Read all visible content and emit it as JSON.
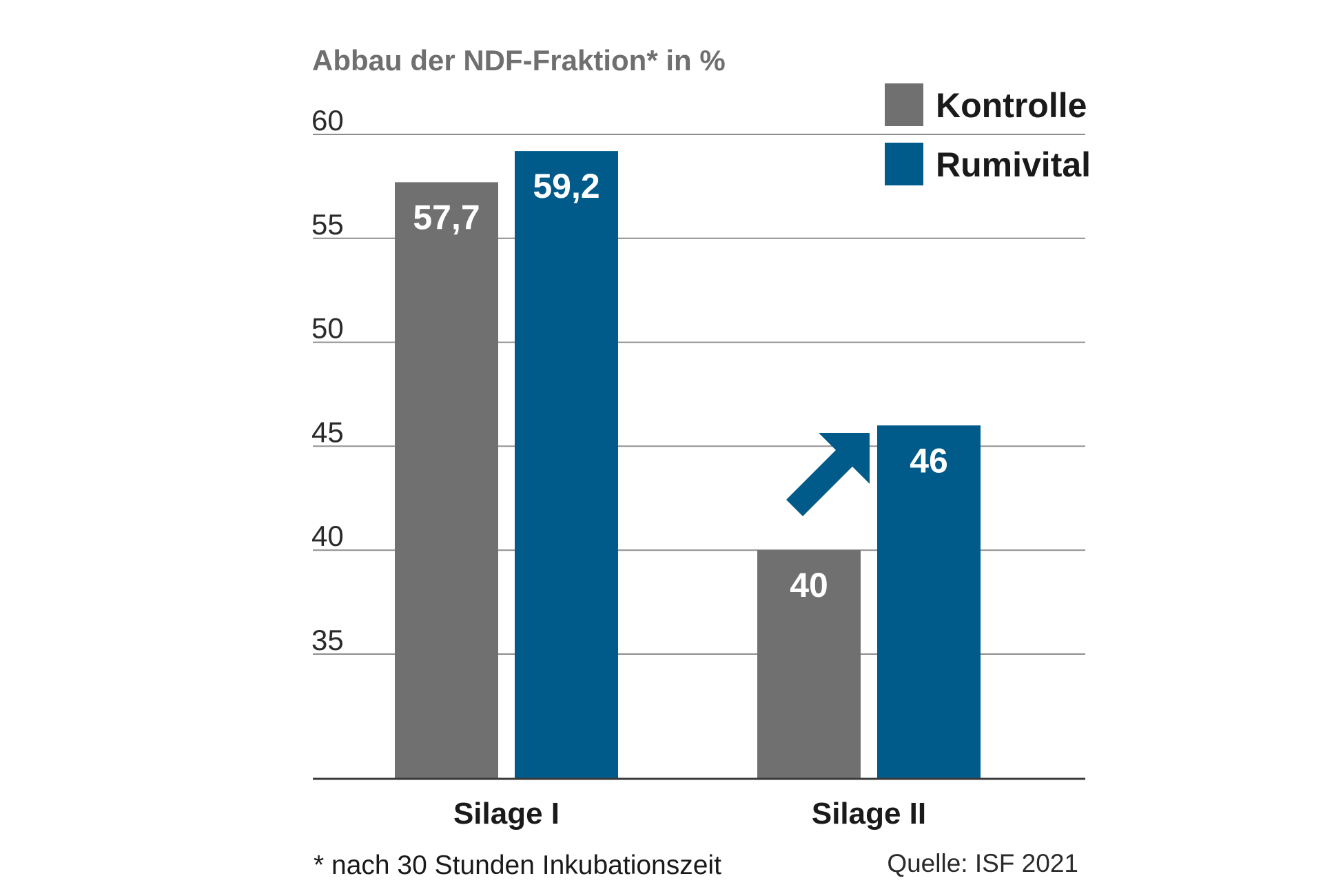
{
  "chart_data": {
    "type": "bar",
    "title": "Abbau der NDF-Fraktion* in %",
    "categories": [
      "Silage I",
      "Silage II"
    ],
    "series": [
      {
        "name": "Kontrolle",
        "color": "#707070",
        "values": [
          57.7,
          40
        ],
        "labels": [
          "57,7",
          "40"
        ]
      },
      {
        "name": "Rumivital",
        "color": "#005a8a",
        "values": [
          59.2,
          46
        ],
        "labels": [
          "59,2",
          "46"
        ]
      }
    ],
    "ylim": [
      29,
      60
    ],
    "yticks": [
      {
        "value": 60,
        "label": "60"
      },
      {
        "value": 55,
        "label": "55"
      },
      {
        "value": 50,
        "label": "50"
      },
      {
        "value": 45,
        "label": "45"
      },
      {
        "value": 40,
        "label": "40"
      },
      {
        "value": 35,
        "label": "35"
      }
    ],
    "grid": true,
    "legend_position": "top-right",
    "annotation": {
      "type": "arrow-up-right",
      "category": "Silage II",
      "color": "#005a8a"
    },
    "footnote": "* nach 30 Stunden Inkubationszeit",
    "source": "Quelle: ISF 2021"
  }
}
